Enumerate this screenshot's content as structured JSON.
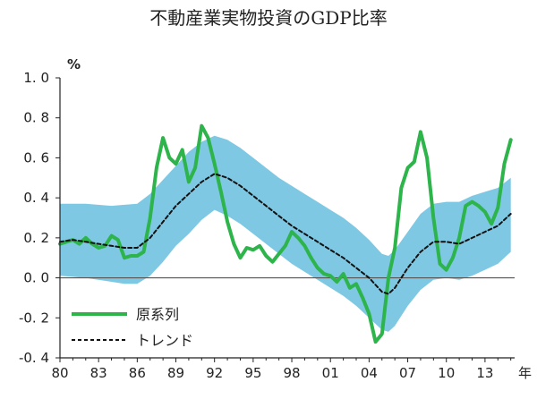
{
  "chart_data": {
    "type": "line",
    "title": "不動産業実物投資のGDP比率",
    "ylabel": "%",
    "xlabel": "年",
    "ylim": [
      -0.4,
      1.0
    ],
    "y_ticks": [
      "1. 0",
      "0. 8",
      "0. 6",
      "0. 4",
      "0. 2",
      "0. 0",
      "-0. 2",
      "-0. 4"
    ],
    "y_tick_values": [
      1.0,
      0.8,
      0.6,
      0.4,
      0.2,
      0.0,
      -0.2,
      -0.4
    ],
    "x_tick_labels": [
      "80",
      "83",
      "86",
      "89",
      "92",
      "95",
      "98",
      "01",
      "04",
      "07",
      "10",
      "13"
    ],
    "x_tick_values": [
      1980,
      1983,
      1986,
      1989,
      1992,
      1995,
      1998,
      2001,
      2004,
      2007,
      2010,
      2013
    ],
    "xlim": [
      1980,
      2015.3
    ],
    "grid": false,
    "legend_position": "bottom-left",
    "colors": {
      "actual": "#2db44a",
      "trend": "#111111",
      "band": "#7ec8e3",
      "zero_line": "#555555"
    },
    "series": [
      {
        "name": "原系列",
        "style": "solid",
        "points": [
          [
            1980.0,
            0.17
          ],
          [
            1980.5,
            0.18
          ],
          [
            1981.0,
            0.19
          ],
          [
            1981.5,
            0.17
          ],
          [
            1982.0,
            0.2
          ],
          [
            1982.5,
            0.17
          ],
          [
            1983.0,
            0.15
          ],
          [
            1983.5,
            0.16
          ],
          [
            1984.0,
            0.21
          ],
          [
            1984.5,
            0.19
          ],
          [
            1985.0,
            0.1
          ],
          [
            1985.5,
            0.11
          ],
          [
            1986.0,
            0.11
          ],
          [
            1986.5,
            0.13
          ],
          [
            1987.0,
            0.3
          ],
          [
            1987.5,
            0.55
          ],
          [
            1988.0,
            0.7
          ],
          [
            1988.5,
            0.6
          ],
          [
            1989.0,
            0.57
          ],
          [
            1989.5,
            0.64
          ],
          [
            1990.0,
            0.48
          ],
          [
            1990.5,
            0.55
          ],
          [
            1991.0,
            0.76
          ],
          [
            1991.5,
            0.7
          ],
          [
            1992.0,
            0.57
          ],
          [
            1992.5,
            0.43
          ],
          [
            1993.0,
            0.28
          ],
          [
            1993.5,
            0.17
          ],
          [
            1994.0,
            0.1
          ],
          [
            1994.5,
            0.15
          ],
          [
            1995.0,
            0.14
          ],
          [
            1995.5,
            0.16
          ],
          [
            1996.0,
            0.11
          ],
          [
            1996.5,
            0.08
          ],
          [
            1997.0,
            0.12
          ],
          [
            1997.5,
            0.16
          ],
          [
            1998.0,
            0.23
          ],
          [
            1998.5,
            0.2
          ],
          [
            1999.0,
            0.16
          ],
          [
            1999.5,
            0.1
          ],
          [
            2000.0,
            0.05
          ],
          [
            2000.5,
            0.02
          ],
          [
            2001.0,
            0.01
          ],
          [
            2001.5,
            -0.02
          ],
          [
            2002.0,
            0.02
          ],
          [
            2002.5,
            -0.05
          ],
          [
            2003.0,
            -0.03
          ],
          [
            2003.5,
            -0.1
          ],
          [
            2004.0,
            -0.18
          ],
          [
            2004.5,
            -0.32
          ],
          [
            2005.0,
            -0.28
          ],
          [
            2005.5,
            0.0
          ],
          [
            2006.0,
            0.15
          ],
          [
            2006.5,
            0.45
          ],
          [
            2007.0,
            0.55
          ],
          [
            2007.5,
            0.58
          ],
          [
            2008.0,
            0.73
          ],
          [
            2008.5,
            0.6
          ],
          [
            2009.0,
            0.3
          ],
          [
            2009.5,
            0.07
          ],
          [
            2010.0,
            0.04
          ],
          [
            2010.5,
            0.1
          ],
          [
            2011.0,
            0.2
          ],
          [
            2011.5,
            0.36
          ],
          [
            2012.0,
            0.38
          ],
          [
            2012.5,
            0.36
          ],
          [
            2013.0,
            0.33
          ],
          [
            2013.5,
            0.27
          ],
          [
            2014.0,
            0.35
          ],
          [
            2014.5,
            0.57
          ],
          [
            2015.0,
            0.69
          ]
        ]
      },
      {
        "name": "トレンド",
        "style": "dashed",
        "points": [
          [
            1980.0,
            0.18
          ],
          [
            1981.0,
            0.19
          ],
          [
            1982.0,
            0.18
          ],
          [
            1983.0,
            0.17
          ],
          [
            1984.0,
            0.16
          ],
          [
            1985.0,
            0.15
          ],
          [
            1986.0,
            0.15
          ],
          [
            1987.0,
            0.2
          ],
          [
            1988.0,
            0.28
          ],
          [
            1989.0,
            0.36
          ],
          [
            1990.0,
            0.42
          ],
          [
            1991.0,
            0.48
          ],
          [
            1992.0,
            0.52
          ],
          [
            1993.0,
            0.5
          ],
          [
            1994.0,
            0.46
          ],
          [
            1995.0,
            0.41
          ],
          [
            1996.0,
            0.36
          ],
          [
            1997.0,
            0.31
          ],
          [
            1998.0,
            0.26
          ],
          [
            1999.0,
            0.22
          ],
          [
            2000.0,
            0.18
          ],
          [
            2001.0,
            0.14
          ],
          [
            2002.0,
            0.1
          ],
          [
            2003.0,
            0.05
          ],
          [
            2004.0,
            0.0
          ],
          [
            2005.0,
            -0.07
          ],
          [
            2005.5,
            -0.08
          ],
          [
            2006.0,
            -0.05
          ],
          [
            2007.0,
            0.05
          ],
          [
            2008.0,
            0.13
          ],
          [
            2009.0,
            0.18
          ],
          [
            2010.0,
            0.18
          ],
          [
            2011.0,
            0.17
          ],
          [
            2012.0,
            0.2
          ],
          [
            2013.0,
            0.23
          ],
          [
            2014.0,
            0.26
          ],
          [
            2015.0,
            0.32
          ]
        ]
      }
    ],
    "band": {
      "upper": [
        [
          1980.0,
          0.37
        ],
        [
          1982.0,
          0.37
        ],
        [
          1984.0,
          0.36
        ],
        [
          1986.0,
          0.37
        ],
        [
          1987.0,
          0.42
        ],
        [
          1988.0,
          0.49
        ],
        [
          1989.0,
          0.56
        ],
        [
          1990.0,
          0.63
        ],
        [
          1991.0,
          0.68
        ],
        [
          1992.0,
          0.71
        ],
        [
          1993.0,
          0.69
        ],
        [
          1994.0,
          0.65
        ],
        [
          1995.0,
          0.6
        ],
        [
          1996.0,
          0.55
        ],
        [
          1997.0,
          0.5
        ],
        [
          1998.0,
          0.46
        ],
        [
          1999.0,
          0.42
        ],
        [
          2000.0,
          0.38
        ],
        [
          2001.0,
          0.34
        ],
        [
          2002.0,
          0.3
        ],
        [
          2003.0,
          0.25
        ],
        [
          2004.0,
          0.19
        ],
        [
          2005.0,
          0.12
        ],
        [
          2005.5,
          0.11
        ],
        [
          2006.0,
          0.14
        ],
        [
          2007.0,
          0.23
        ],
        [
          2008.0,
          0.32
        ],
        [
          2009.0,
          0.37
        ],
        [
          2010.0,
          0.38
        ],
        [
          2011.0,
          0.38
        ],
        [
          2012.0,
          0.41
        ],
        [
          2013.0,
          0.43
        ],
        [
          2014.0,
          0.45
        ],
        [
          2015.0,
          0.5
        ]
      ],
      "lower": [
        [
          1980.0,
          0.01
        ],
        [
          1982.0,
          0.0
        ],
        [
          1984.0,
          -0.02
        ],
        [
          1985.0,
          -0.03
        ],
        [
          1986.0,
          -0.03
        ],
        [
          1987.0,
          0.01
        ],
        [
          1988.0,
          0.08
        ],
        [
          1989.0,
          0.16
        ],
        [
          1990.0,
          0.22
        ],
        [
          1991.0,
          0.29
        ],
        [
          1992.0,
          0.34
        ],
        [
          1993.0,
          0.31
        ],
        [
          1994.0,
          0.27
        ],
        [
          1995.0,
          0.22
        ],
        [
          1996.0,
          0.17
        ],
        [
          1997.0,
          0.12
        ],
        [
          1998.0,
          0.07
        ],
        [
          1999.0,
          0.03
        ],
        [
          2000.0,
          -0.01
        ],
        [
          2001.0,
          -0.05
        ],
        [
          2002.0,
          -0.09
        ],
        [
          2003.0,
          -0.14
        ],
        [
          2004.0,
          -0.2
        ],
        [
          2005.0,
          -0.26
        ],
        [
          2005.5,
          -0.27
        ],
        [
          2006.0,
          -0.24
        ],
        [
          2007.0,
          -0.14
        ],
        [
          2008.0,
          -0.06
        ],
        [
          2009.0,
          -0.01
        ],
        [
          2010.0,
          0.0
        ],
        [
          2011.0,
          -0.01
        ],
        [
          2012.0,
          0.01
        ],
        [
          2013.0,
          0.04
        ],
        [
          2014.0,
          0.07
        ],
        [
          2015.0,
          0.13
        ]
      ]
    }
  }
}
